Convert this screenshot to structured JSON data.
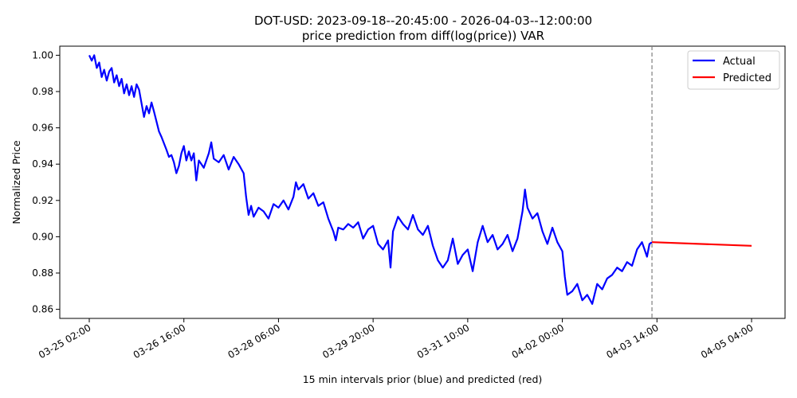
{
  "chart_data": {
    "type": "line",
    "title": "DOT-USD: 2023-09-18--20:45:00 - 2026-04-03--12:00:00",
    "subtitle": "price prediction from diff(log(price)) VAR",
    "xlabel": "15 min intervals prior (blue) and predicted (red)",
    "ylabel": "Normalized Price",
    "ylim": [
      0.855,
      1.005
    ],
    "yticks": [
      0.86,
      0.88,
      0.9,
      0.92,
      0.94,
      0.96,
      0.98,
      1.0
    ],
    "ytick_labels": [
      "0.86",
      "0.88",
      "0.90",
      "0.92",
      "0.94",
      "0.96",
      "0.98",
      "1.00"
    ],
    "xlim": [
      "03-24 20:00",
      "03-05 08:00"
    ],
    "xticks": [
      "03-25 02:00",
      "03-26 16:00",
      "03-28 06:00",
      "03-29 20:00",
      "03-31 10:00",
      "04-02 00:00",
      "04-03 14:00",
      "04-05 04:00"
    ],
    "grid": false,
    "legend": "top-right",
    "series": [
      {
        "name": "Actual",
        "color": "#0000ff",
        "points": [
          [
            "03-25 02:00",
            1.0
          ],
          [
            "03-25 03:00",
            0.997
          ],
          [
            "03-25 04:00",
            1.0
          ],
          [
            "03-25 05:00",
            0.993
          ],
          [
            "03-25 06:00",
            0.996
          ],
          [
            "03-25 07:00",
            0.988
          ],
          [
            "03-25 08:00",
            0.992
          ],
          [
            "03-25 09:00",
            0.986
          ],
          [
            "03-25 10:00",
            0.991
          ],
          [
            "03-25 11:00",
            0.993
          ],
          [
            "03-25 12:00",
            0.985
          ],
          [
            "03-25 13:00",
            0.989
          ],
          [
            "03-25 14:00",
            0.983
          ],
          [
            "03-25 15:00",
            0.987
          ],
          [
            "03-25 16:00",
            0.979
          ],
          [
            "03-25 17:00",
            0.984
          ],
          [
            "03-25 18:00",
            0.978
          ],
          [
            "03-25 19:00",
            0.983
          ],
          [
            "03-25 20:00",
            0.977
          ],
          [
            "03-25 21:00",
            0.984
          ],
          [
            "03-25 22:00",
            0.981
          ],
          [
            "03-26 00:00",
            0.966
          ],
          [
            "03-26 01:00",
            0.972
          ],
          [
            "03-26 02:00",
            0.968
          ],
          [
            "03-26 03:00",
            0.974
          ],
          [
            "03-26 04:00",
            0.969
          ],
          [
            "03-26 06:00",
            0.958
          ],
          [
            "03-26 07:00",
            0.955
          ],
          [
            "03-26 09:00",
            0.948
          ],
          [
            "03-26 10:00",
            0.944
          ],
          [
            "03-26 11:00",
            0.945
          ],
          [
            "03-26 12:00",
            0.941
          ],
          [
            "03-26 13:00",
            0.935
          ],
          [
            "03-26 14:00",
            0.939
          ],
          [
            "03-26 15:00",
            0.946
          ],
          [
            "03-26 16:00",
            0.95
          ],
          [
            "03-26 17:00",
            0.942
          ],
          [
            "03-26 18:00",
            0.947
          ],
          [
            "03-26 19:00",
            0.942
          ],
          [
            "03-26 20:00",
            0.946
          ],
          [
            "03-26 21:00",
            0.931
          ],
          [
            "03-26 22:00",
            0.942
          ],
          [
            "03-27 00:00",
            0.938
          ],
          [
            "03-27 02:00",
            0.946
          ],
          [
            "03-27 03:00",
            0.952
          ],
          [
            "03-27 04:00",
            0.943
          ],
          [
            "03-27 06:00",
            0.941
          ],
          [
            "03-27 08:00",
            0.945
          ],
          [
            "03-27 10:00",
            0.937
          ],
          [
            "03-27 12:00",
            0.944
          ],
          [
            "03-27 14:00",
            0.94
          ],
          [
            "03-27 16:00",
            0.935
          ],
          [
            "03-27 17:00",
            0.922
          ],
          [
            "03-27 18:00",
            0.912
          ],
          [
            "03-27 19:00",
            0.917
          ],
          [
            "03-27 20:00",
            0.911
          ],
          [
            "03-27 22:00",
            0.916
          ],
          [
            "03-28 00:00",
            0.914
          ],
          [
            "03-28 02:00",
            0.91
          ],
          [
            "03-28 04:00",
            0.918
          ],
          [
            "03-28 06:00",
            0.916
          ],
          [
            "03-28 08:00",
            0.92
          ],
          [
            "03-28 10:00",
            0.915
          ],
          [
            "03-28 12:00",
            0.922
          ],
          [
            "03-28 13:00",
            0.93
          ],
          [
            "03-28 14:00",
            0.926
          ],
          [
            "03-28 16:00",
            0.929
          ],
          [
            "03-28 18:00",
            0.921
          ],
          [
            "03-28 20:00",
            0.924
          ],
          [
            "03-28 22:00",
            0.917
          ],
          [
            "03-29 00:00",
            0.919
          ],
          [
            "03-29 02:00",
            0.91
          ],
          [
            "03-29 04:00",
            0.903
          ],
          [
            "03-29 05:00",
            0.898
          ],
          [
            "03-29 06:00",
            0.905
          ],
          [
            "03-29 08:00",
            0.904
          ],
          [
            "03-29 10:00",
            0.907
          ],
          [
            "03-29 12:00",
            0.905
          ],
          [
            "03-29 14:00",
            0.908
          ],
          [
            "03-29 16:00",
            0.899
          ],
          [
            "03-29 18:00",
            0.904
          ],
          [
            "03-29 20:00",
            0.906
          ],
          [
            "03-29 22:00",
            0.896
          ],
          [
            "03-30 00:00",
            0.893
          ],
          [
            "03-30 02:00",
            0.898
          ],
          [
            "03-30 03:00",
            0.883
          ],
          [
            "03-30 04:00",
            0.903
          ],
          [
            "03-30 06:00",
            0.911
          ],
          [
            "03-30 08:00",
            0.907
          ],
          [
            "03-30 10:00",
            0.904
          ],
          [
            "03-30 12:00",
            0.912
          ],
          [
            "03-30 14:00",
            0.904
          ],
          [
            "03-30 16:00",
            0.901
          ],
          [
            "03-30 18:00",
            0.906
          ],
          [
            "03-30 20:00",
            0.895
          ],
          [
            "03-30 22:00",
            0.887
          ],
          [
            "03-31 00:00",
            0.883
          ],
          [
            "03-31 02:00",
            0.887
          ],
          [
            "03-31 04:00",
            0.899
          ],
          [
            "03-31 06:00",
            0.885
          ],
          [
            "03-31 08:00",
            0.89
          ],
          [
            "03-31 10:00",
            0.893
          ],
          [
            "03-31 12:00",
            0.881
          ],
          [
            "03-31 14:00",
            0.897
          ],
          [
            "03-31 16:00",
            0.906
          ],
          [
            "03-31 18:00",
            0.897
          ],
          [
            "03-31 20:00",
            0.901
          ],
          [
            "03-31 22:00",
            0.893
          ],
          [
            "04-01 00:00",
            0.896
          ],
          [
            "04-01 02:00",
            0.901
          ],
          [
            "04-01 04:00",
            0.892
          ],
          [
            "04-01 06:00",
            0.899
          ],
          [
            "04-01 08:00",
            0.914
          ],
          [
            "04-01 09:00",
            0.926
          ],
          [
            "04-01 10:00",
            0.916
          ],
          [
            "04-01 12:00",
            0.91
          ],
          [
            "04-01 14:00",
            0.913
          ],
          [
            "04-01 16:00",
            0.903
          ],
          [
            "04-01 18:00",
            0.896
          ],
          [
            "04-01 20:00",
            0.905
          ],
          [
            "04-01 22:00",
            0.897
          ],
          [
            "04-02 00:00",
            0.892
          ],
          [
            "04-02 01:00",
            0.878
          ],
          [
            "04-02 02:00",
            0.868
          ],
          [
            "04-02 04:00",
            0.87
          ],
          [
            "04-02 06:00",
            0.874
          ],
          [
            "04-02 08:00",
            0.865
          ],
          [
            "04-02 10:00",
            0.868
          ],
          [
            "04-02 12:00",
            0.863
          ],
          [
            "04-02 14:00",
            0.874
          ],
          [
            "04-02 16:00",
            0.871
          ],
          [
            "04-02 18:00",
            0.877
          ],
          [
            "04-02 20:00",
            0.879
          ],
          [
            "04-02 22:00",
            0.883
          ],
          [
            "04-03 00:00",
            0.881
          ],
          [
            "04-03 02:00",
            0.886
          ],
          [
            "04-03 04:00",
            0.884
          ],
          [
            "04-03 06:00",
            0.893
          ],
          [
            "04-03 08:00",
            0.897
          ],
          [
            "04-03 09:00",
            0.893
          ],
          [
            "04-03 10:00",
            0.889
          ],
          [
            "04-03 11:00",
            0.896
          ],
          [
            "04-03 12:00",
            0.897
          ]
        ]
      },
      {
        "name": "Predicted",
        "color": "#ff0000",
        "points": [
          [
            "04-03 12:00",
            0.897
          ],
          [
            "04-05 04:00",
            0.895
          ]
        ]
      }
    ],
    "vline_at": "04-03 12:00"
  }
}
